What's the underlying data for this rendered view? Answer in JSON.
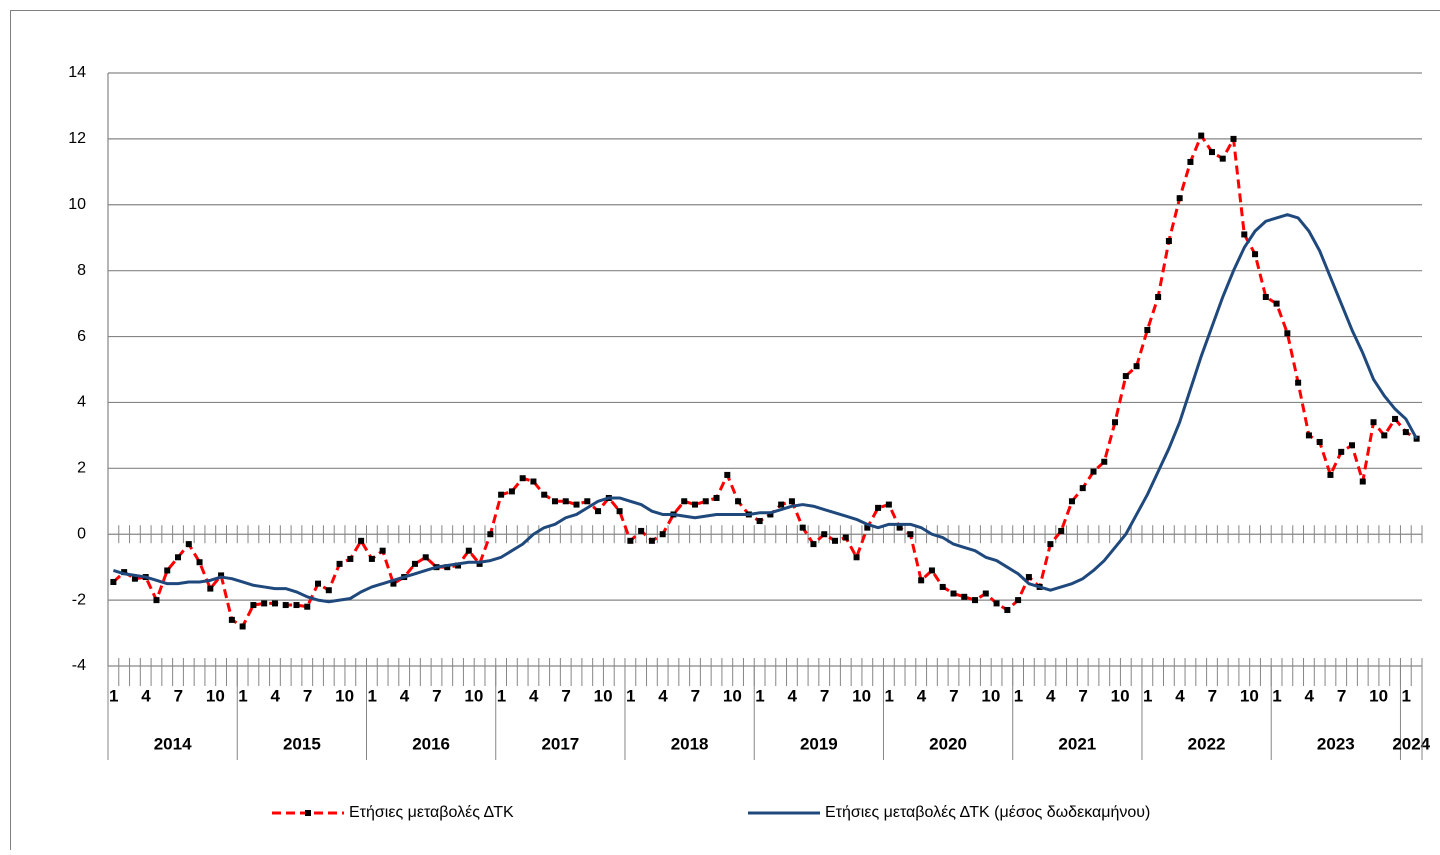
{
  "chart_data": {
    "type": "line",
    "categories": [
      "1",
      null,
      null,
      "4",
      null,
      null,
      "7",
      null,
      null,
      "10",
      null,
      null,
      "1",
      null,
      null,
      "4",
      null,
      null,
      "7",
      null,
      null,
      "10",
      null,
      null,
      "1",
      null,
      null,
      "4",
      null,
      null,
      "7",
      null,
      null,
      "10",
      null,
      null,
      "1",
      null,
      null,
      "4",
      null,
      null,
      "7",
      null,
      null,
      "10",
      null,
      null,
      "1",
      null,
      null,
      "4",
      null,
      null,
      "7",
      null,
      null,
      "10",
      null,
      null,
      "1",
      null,
      null,
      "4",
      null,
      null,
      "7",
      null,
      null,
      "10",
      null,
      null,
      "1",
      null,
      null,
      "4",
      null,
      null,
      "7",
      null,
      null,
      "10",
      null,
      null,
      "1",
      null,
      null,
      "4",
      null,
      null,
      "7",
      null,
      null,
      "10",
      null,
      null,
      "1",
      null,
      null,
      "4",
      null,
      null,
      "7",
      null,
      null,
      "10",
      null,
      null,
      "1",
      null,
      null,
      "4",
      null,
      null,
      "7",
      null,
      null,
      "10",
      null,
      null,
      "1",
      null
    ],
    "x_groups": [
      "2014",
      "2015",
      "2016",
      "2017",
      "2018",
      "2019",
      "2020",
      "2021",
      "2022",
      "2023",
      "2024"
    ],
    "series": [
      {
        "name": "Ετήσιες μεταβολές ΔΤΚ",
        "color": "#ff0000",
        "style": "dashed",
        "marker_color": "#000000",
        "values": [
          -1.45,
          -1.15,
          -1.35,
          -1.3,
          -2.0,
          -1.1,
          -0.7,
          -0.3,
          -0.85,
          -1.65,
          -1.25,
          -2.6,
          -2.8,
          -2.15,
          -2.1,
          -2.1,
          -2.15,
          -2.15,
          -2.2,
          -1.5,
          -1.7,
          -0.9,
          -0.75,
          -0.2,
          -0.75,
          -0.5,
          -1.5,
          -1.3,
          -0.9,
          -0.7,
          -1.0,
          -1.0,
          -0.95,
          -0.5,
          -0.9,
          0.0,
          1.2,
          1.3,
          1.7,
          1.6,
          1.2,
          1.0,
          1.0,
          0.9,
          1.0,
          0.7,
          1.1,
          0.7,
          -0.2,
          0.1,
          -0.2,
          0.0,
          0.6,
          1.0,
          0.9,
          1.0,
          1.1,
          1.8,
          1.0,
          0.6,
          0.4,
          0.6,
          0.9,
          1.0,
          0.2,
          -0.3,
          0.0,
          -0.2,
          -0.1,
          -0.7,
          0.2,
          0.8,
          0.9,
          0.2,
          0.0,
          -1.4,
          -1.1,
          -1.6,
          -1.8,
          -1.9,
          -2.0,
          -1.8,
          -2.1,
          -2.3,
          -2.0,
          -1.3,
          -1.6,
          -0.3,
          0.1,
          1.0,
          1.4,
          1.9,
          2.2,
          3.4,
          4.8,
          5.1,
          6.2,
          7.2,
          8.9,
          10.2,
          11.3,
          12.1,
          11.6,
          11.4,
          12.0,
          9.1,
          8.5,
          7.2,
          7.0,
          6.1,
          4.6,
          3.0,
          2.8,
          1.8,
          2.5,
          2.7,
          1.6,
          3.4,
          3.0,
          3.5,
          3.1,
          2.9
        ]
      },
      {
        "name": "Ετήσιες μεταβολές ΔΤΚ (μέσος δωδεκαμήνου)",
        "color": "#1f497d",
        "style": "solid",
        "values": [
          -1.1,
          -1.2,
          -1.25,
          -1.3,
          -1.4,
          -1.5,
          -1.5,
          -1.45,
          -1.45,
          -1.4,
          -1.3,
          -1.35,
          -1.45,
          -1.55,
          -1.6,
          -1.65,
          -1.65,
          -1.75,
          -1.9,
          -2.0,
          -2.05,
          -2.0,
          -1.95,
          -1.75,
          -1.6,
          -1.5,
          -1.4,
          -1.3,
          -1.2,
          -1.1,
          -1.0,
          -0.95,
          -0.9,
          -0.85,
          -0.85,
          -0.8,
          -0.7,
          -0.5,
          -0.3,
          0.0,
          0.2,
          0.3,
          0.5,
          0.6,
          0.8,
          1.0,
          1.1,
          1.1,
          1.0,
          0.9,
          0.7,
          0.6,
          0.6,
          0.55,
          0.5,
          0.55,
          0.6,
          0.6,
          0.6,
          0.6,
          0.65,
          0.65,
          0.75,
          0.85,
          0.9,
          0.85,
          0.75,
          0.65,
          0.55,
          0.45,
          0.3,
          0.2,
          0.3,
          0.3,
          0.3,
          0.2,
          0.0,
          -0.1,
          -0.3,
          -0.4,
          -0.5,
          -0.7,
          -0.8,
          -1.0,
          -1.2,
          -1.5,
          -1.6,
          -1.7,
          -1.6,
          -1.5,
          -1.35,
          -1.1,
          -0.8,
          -0.4,
          0.0,
          0.6,
          1.2,
          1.9,
          2.6,
          3.4,
          4.4,
          5.4,
          6.3,
          7.2,
          8.0,
          8.7,
          9.2,
          9.5,
          9.6,
          9.7,
          9.6,
          9.2,
          8.6,
          7.8,
          7.0,
          6.2,
          5.5,
          4.7,
          4.2,
          3.8,
          3.5,
          2.9
        ]
      }
    ],
    "ylim": [
      -4,
      14
    ],
    "yticks": [
      -4,
      -2,
      0,
      2,
      4,
      6,
      8,
      10,
      12,
      14
    ],
    "grid": true,
    "legend": "bottom"
  }
}
